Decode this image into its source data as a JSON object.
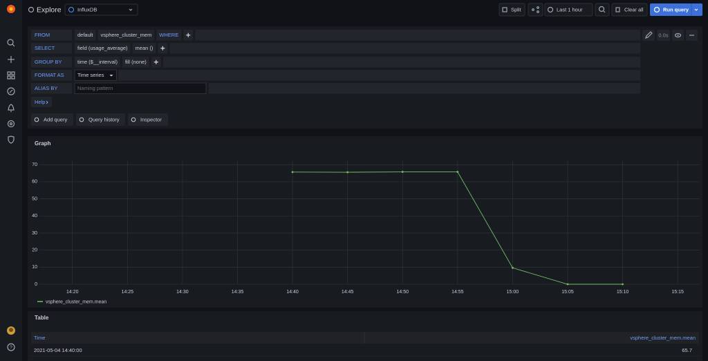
{
  "nav": {
    "title": "Explore",
    "datasource": "InfluxDB"
  },
  "toolbar": {
    "split": "Split",
    "time_range": "Last 1 hour",
    "clear": "Clear all",
    "run": "Run query"
  },
  "query": {
    "rows": [
      {
        "label": "FROM",
        "parts": [
          "default",
          "vsphere_cluster_mem",
          "WHERE"
        ]
      },
      {
        "label": "SELECT",
        "parts": [
          "field (usage_average)",
          "mean ()"
        ]
      },
      {
        "label": "GROUP BY",
        "parts": [
          "time ($__interval)",
          "fill (none)"
        ]
      },
      {
        "label": "FORMAT AS",
        "select": "Time series"
      },
      {
        "label": "ALIAS BY",
        "placeholder": "Naming pattern"
      }
    ],
    "help": "Help",
    "duration": "0.0s",
    "buttons": [
      "Add query",
      "Query history",
      "Inspector"
    ]
  },
  "chart_data": {
    "type": "line",
    "title": "Graph",
    "x": [
      "14:40",
      "14:45",
      "14:50",
      "14:55",
      "15:00",
      "15:05",
      "15:10"
    ],
    "series": [
      {
        "name": "vsphere_cluster_mem.mean",
        "color": "#73bf69",
        "values": [
          65.7,
          65.6,
          65.8,
          65.8,
          9.6,
          0,
          0
        ]
      }
    ],
    "xlim": [
      "14:17",
      "15:17"
    ],
    "xticks": [
      "14:20",
      "14:25",
      "14:30",
      "14:35",
      "14:40",
      "14:45",
      "14:50",
      "14:55",
      "15:00",
      "15:05",
      "15:10",
      "15:15"
    ],
    "ylim": [
      0,
      72.5
    ],
    "yticks": [
      0,
      10,
      20,
      30,
      40,
      50,
      60,
      70
    ],
    "grid": true,
    "legend": "bottom"
  },
  "table": {
    "title": "Table",
    "columns": [
      "Time",
      "vsphere_cluster_mem.mean"
    ],
    "rows": [
      [
        "2021-05-04 14:40:00",
        65.7
      ]
    ]
  }
}
